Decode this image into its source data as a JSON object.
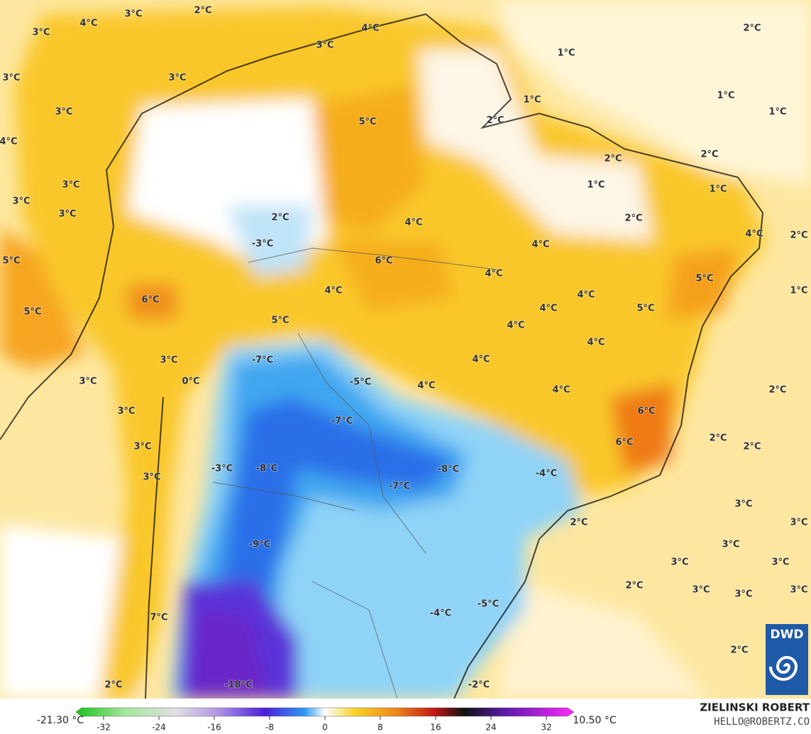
{
  "map": {
    "labels": [
      "3°C",
      "2°C",
      "3°C",
      "4°C",
      "4°C",
      "3°C",
      "2°C",
      "1°C",
      "3°C",
      "3°C",
      "1°C",
      "1°C",
      "3°C",
      "1°C",
      "5°C",
      "2°C",
      "4°C",
      "2°C",
      "2°C",
      "3°C",
      "1°C",
      "1°C",
      "3°C",
      "3°C",
      "2°C",
      "2°C",
      "4°C",
      "4°C",
      "2°C",
      "-3°C",
      "4°C",
      "5°C",
      "6°C",
      "4°C",
      "5°C",
      "4°C",
      "1°C",
      "6°C",
      "4°C",
      "5°C",
      "4°C",
      "5°C",
      "5°C",
      "4°C",
      "4°C",
      "-7°C",
      "3°C",
      "4°C",
      "-5°C",
      "3°C",
      "0°C",
      "4°C",
      "4°C",
      "2°C",
      "3°C",
      "6°C",
      "-7°C",
      "2°C",
      "3°C",
      "6°C",
      "2°C",
      "-3°C",
      "-8°C",
      "-8°C",
      "-4°C",
      "3°C",
      "-7°C",
      "3°C",
      "2°C",
      "3°C",
      "-9°C",
      "3°C",
      "3°C",
      "3°C",
      "2°C",
      "3°C",
      "3°C",
      "3°C",
      "-4°C",
      "-5°C",
      "7°C",
      "2°C",
      "2°C",
      "-18°C",
      "-2°C"
    ]
  },
  "colorbar": {
    "min_label": "-21.30 °C",
    "max_label": "10.50 °C",
    "lim": [
      -36,
      36
    ],
    "ticks": [
      -32,
      -24,
      -16,
      -8,
      0,
      8,
      16,
      24,
      32
    ]
  },
  "credit": {
    "author": "ZIELINSKI ROBERT",
    "email": "HELLO@ROBERTZ.CO",
    "logo": "DWD"
  }
}
